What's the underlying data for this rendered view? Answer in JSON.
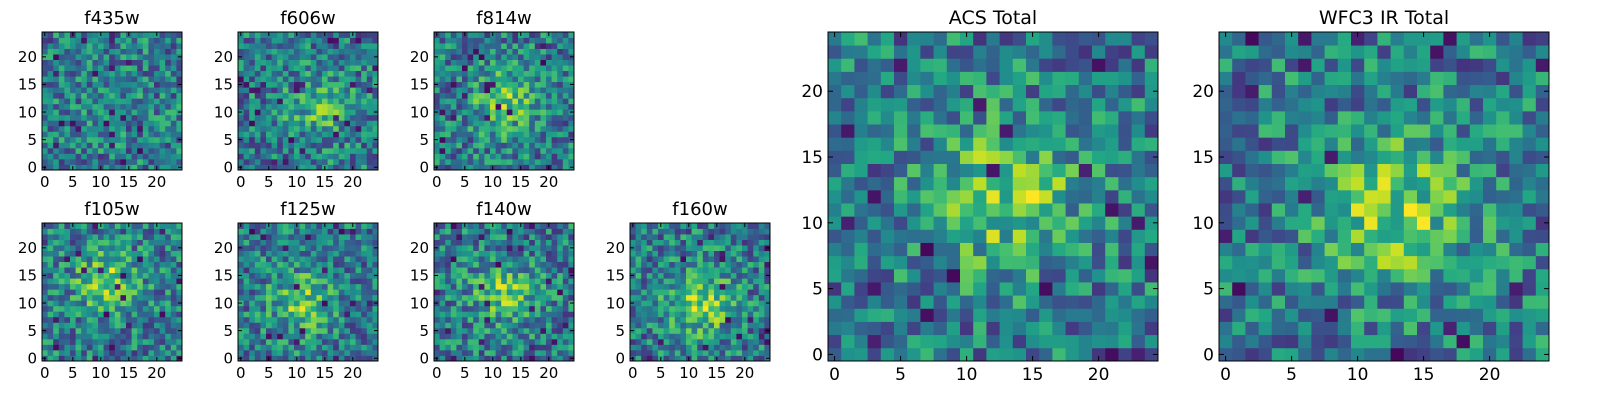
{
  "chart_data": [
    {
      "type": "heatmap",
      "title": "f435w",
      "xticks": [
        "0",
        "5",
        "10",
        "15",
        "20"
      ],
      "yticks": [
        "0",
        "5",
        "10",
        "15",
        "20"
      ],
      "grid_size": [
        25,
        25
      ],
      "colormap": "viridis",
      "center": [
        12,
        12
      ],
      "signal": 0.05,
      "seed": 11
    },
    {
      "type": "heatmap",
      "title": "f606w",
      "xticks": [
        "0",
        "5",
        "10",
        "15",
        "20"
      ],
      "yticks": [
        "0",
        "5",
        "10",
        "15",
        "20"
      ],
      "grid_size": [
        25,
        25
      ],
      "colormap": "viridis",
      "center": [
        14,
        11
      ],
      "signal": 0.35,
      "seed": 23
    },
    {
      "type": "heatmap",
      "title": "f814w",
      "xticks": [
        "0",
        "5",
        "10",
        "15",
        "20"
      ],
      "yticks": [
        "0",
        "5",
        "10",
        "15",
        "20"
      ],
      "grid_size": [
        25,
        25
      ],
      "colormap": "viridis",
      "center": [
        12,
        12
      ],
      "signal": 0.45,
      "seed": 37
    },
    {
      "type": "heatmap",
      "title": "f105w",
      "xticks": [
        "0",
        "5",
        "10",
        "15",
        "20"
      ],
      "yticks": [
        "0",
        "5",
        "10",
        "15",
        "20"
      ],
      "grid_size": [
        25,
        25
      ],
      "colormap": "viridis",
      "center": [
        11,
        14
      ],
      "signal": 0.5,
      "seed": 41
    },
    {
      "type": "heatmap",
      "title": "f125w",
      "xticks": [
        "0",
        "5",
        "10",
        "15",
        "20"
      ],
      "yticks": [
        "0",
        "5",
        "10",
        "15",
        "20"
      ],
      "grid_size": [
        25,
        25
      ],
      "colormap": "viridis",
      "center": [
        11,
        10
      ],
      "signal": 0.45,
      "seed": 53
    },
    {
      "type": "heatmap",
      "title": "f140w",
      "xticks": [
        "0",
        "5",
        "10",
        "15",
        "20"
      ],
      "yticks": [
        "0",
        "5",
        "10",
        "15",
        "20"
      ],
      "grid_size": [
        25,
        25
      ],
      "colormap": "viridis",
      "center": [
        12,
        12
      ],
      "signal": 0.45,
      "seed": 67
    },
    {
      "type": "heatmap",
      "title": "f160w",
      "xticks": [
        "0",
        "5",
        "10",
        "15",
        "20"
      ],
      "yticks": [
        "0",
        "5",
        "10",
        "15",
        "20"
      ],
      "grid_size": [
        25,
        25
      ],
      "colormap": "viridis",
      "center": [
        12,
        10
      ],
      "signal": 0.55,
      "seed": 79
    },
    {
      "type": "heatmap",
      "title": "ACS Total",
      "xticks": [
        "0",
        "5",
        "10",
        "15",
        "20"
      ],
      "yticks": [
        "0",
        "5",
        "10",
        "15",
        "20"
      ],
      "grid_size": [
        25,
        25
      ],
      "colormap": "viridis",
      "center": [
        13,
        12
      ],
      "signal": 0.5,
      "seed": 83
    },
    {
      "type": "heatmap",
      "title": "WFC3 IR Total",
      "xticks": [
        "0",
        "5",
        "10",
        "15",
        "20"
      ],
      "yticks": [
        "0",
        "5",
        "10",
        "15",
        "20"
      ],
      "grid_size": [
        25,
        25
      ],
      "colormap": "viridis",
      "center": [
        13,
        11
      ],
      "signal": 0.55,
      "seed": 97
    }
  ]
}
